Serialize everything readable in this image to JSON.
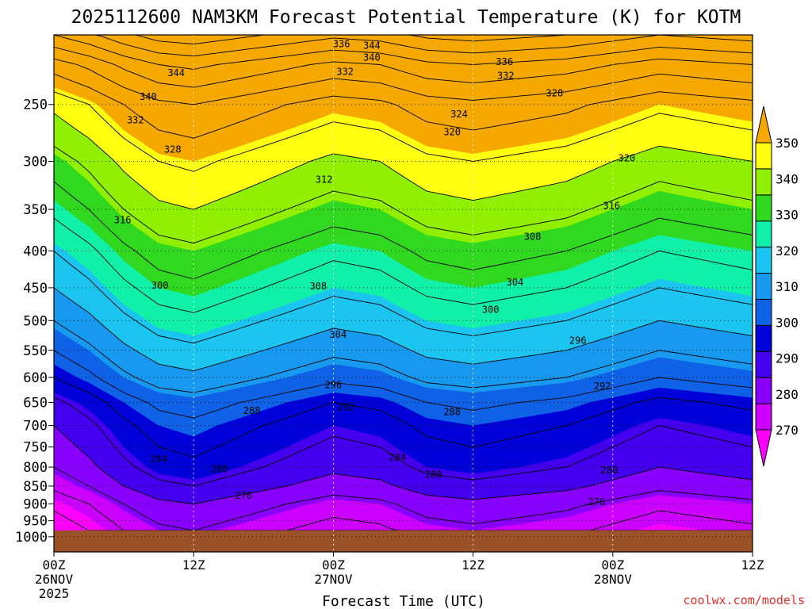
{
  "chart_data": {
    "type": "heatmap",
    "title": "2025112600 NAM3KM Forecast Potential Temperature (K) for KOTM",
    "xlabel": "Forecast Time (UTC)",
    "ylabel": "",
    "credit": "coolwx.com/models",
    "x_ticks": [
      {
        "hour": 0,
        "line1": "00Z",
        "line2": "26NOV",
        "line3": "2025"
      },
      {
        "hour": 12,
        "line1": "12Z",
        "line2": "",
        "line3": ""
      },
      {
        "hour": 24,
        "line1": "00Z",
        "line2": "27NOV",
        "line3": ""
      },
      {
        "hour": 36,
        "line1": "12Z",
        "line2": "",
        "line3": ""
      },
      {
        "hour": 48,
        "line1": "00Z",
        "line2": "28NOV",
        "line3": ""
      },
      {
        "hour": 60,
        "line1": "12Z",
        "line2": "",
        "line3": ""
      }
    ],
    "xlim": [
      0,
      60
    ],
    "y_ticks": [
      250,
      300,
      350,
      400,
      450,
      500,
      550,
      600,
      650,
      700,
      750,
      800,
      850,
      900,
      950,
      1000
    ],
    "ylim": [
      1050,
      200
    ],
    "y_scale": "log",
    "grid": true,
    "colorbar": {
      "levels": [
        270,
        280,
        290,
        300,
        310,
        320,
        330,
        340,
        350
      ],
      "labels": [
        "270",
        "280",
        "290",
        "300",
        "310",
        "320",
        "330",
        "340",
        "350"
      ],
      "colors": [
        "#ff00ff",
        "#cc00ff",
        "#8800ff",
        "#4400ee",
        "#0000d8",
        "#0f62e6",
        "#1899f0",
        "#1cc4f0",
        "#10f0a8",
        "#30d820",
        "#90f000",
        "#ffff10",
        "#f4a800"
      ]
    },
    "contour_interval": 4,
    "contour_labels": [
      {
        "value": "344",
        "hour": 27.3,
        "p": 207
      },
      {
        "value": "340",
        "hour": 27.3,
        "p": 215
      },
      {
        "value": "336",
        "hour": 38.7,
        "p": 218
      },
      {
        "value": "332",
        "hour": 38.8,
        "p": 228
      },
      {
        "value": "328",
        "hour": 43.0,
        "p": 241
      },
      {
        "value": "324",
        "hour": 34.8,
        "p": 258
      },
      {
        "value": "320",
        "hour": 34.2,
        "p": 273
      },
      {
        "value": "320",
        "hour": 49.2,
        "p": 297
      },
      {
        "value": "316",
        "hour": 47.9,
        "p": 346
      },
      {
        "value": "312",
        "hour": 23.2,
        "p": 318
      },
      {
        "value": "308",
        "hour": 41.1,
        "p": 382
      },
      {
        "value": "304",
        "hour": 39.6,
        "p": 442
      },
      {
        "value": "300",
        "hour": 37.5,
        "p": 483
      },
      {
        "value": "296",
        "hour": 45.0,
        "p": 533
      },
      {
        "value": "292",
        "hour": 47.1,
        "p": 617
      },
      {
        "value": "288",
        "hour": 34.2,
        "p": 670
      },
      {
        "value": "284",
        "hour": 29.5,
        "p": 776
      },
      {
        "value": "280",
        "hour": 32.6,
        "p": 819
      },
      {
        "value": "276",
        "hour": 46.6,
        "p": 895
      },
      {
        "value": "344",
        "hour": 10.5,
        "p": 226
      },
      {
        "value": "340",
        "hour": 8.1,
        "p": 244
      },
      {
        "value": "332",
        "hour": 7.0,
        "p": 263
      },
      {
        "value": "328",
        "hour": 10.2,
        "p": 289
      },
      {
        "value": "316",
        "hour": 5.9,
        "p": 362
      },
      {
        "value": "300",
        "hour": 9.1,
        "p": 447
      },
      {
        "value": "308",
        "hour": 22.7,
        "p": 448
      },
      {
        "value": "304",
        "hour": 24.4,
        "p": 523
      },
      {
        "value": "296",
        "hour": 24.0,
        "p": 615
      },
      {
        "value": "292",
        "hour": 25.1,
        "p": 660
      },
      {
        "value": "288",
        "hour": 17.0,
        "p": 668
      },
      {
        "value": "284",
        "hour": 9.0,
        "p": 780
      },
      {
        "value": "280",
        "hour": 14.2,
        "p": 805
      },
      {
        "value": "276",
        "hour": 16.3,
        "p": 876
      },
      {
        "value": "336",
        "hour": 24.7,
        "p": 206
      },
      {
        "value": "332",
        "hour": 25.0,
        "p": 225
      },
      {
        "value": "280",
        "hour": 47.7,
        "p": 808
      }
    ],
    "theta_profile": [
      {
        "p": 980,
        "theta": 271
      },
      {
        "p": 900,
        "theta": 275
      },
      {
        "p": 850,
        "theta": 279
      },
      {
        "p": 800,
        "theta": 282
      },
      {
        "p": 750,
        "theta": 284
      },
      {
        "p": 700,
        "theta": 286
      },
      {
        "p": 650,
        "theta": 289
      },
      {
        "p": 600,
        "theta": 294
      },
      {
        "p": 550,
        "theta": 298
      },
      {
        "p": 500,
        "theta": 302
      },
      {
        "p": 450,
        "theta": 306
      },
      {
        "p": 400,
        "theta": 310
      },
      {
        "p": 350,
        "theta": 315
      },
      {
        "p": 300,
        "theta": 320
      },
      {
        "p": 250,
        "theta": 327
      },
      {
        "p": 220,
        "theta": 336
      },
      {
        "p": 200,
        "theta": 346
      }
    ],
    "theta_offset_by_hour": [
      {
        "hour": 0,
        "offset": -6
      },
      {
        "hour": 3,
        "offset": -3
      },
      {
        "hour": 6,
        "offset": 1
      },
      {
        "hour": 9,
        "offset": 4
      },
      {
        "hour": 12,
        "offset": 5
      },
      {
        "hour": 16,
        "offset": 3
      },
      {
        "hour": 20,
        "offset": 1
      },
      {
        "hour": 24,
        "offset": -1
      },
      {
        "hour": 28,
        "offset": 0
      },
      {
        "hour": 32,
        "offset": 3
      },
      {
        "hour": 36,
        "offset": 4
      },
      {
        "hour": 40,
        "offset": 3
      },
      {
        "hour": 44,
        "offset": 2
      },
      {
        "hour": 48,
        "offset": 0
      },
      {
        "hour": 52,
        "offset": -2
      },
      {
        "hour": 56,
        "offset": -1
      },
      {
        "hour": 60,
        "offset": 0
      }
    ],
    "terrain_top_p": 980
  }
}
